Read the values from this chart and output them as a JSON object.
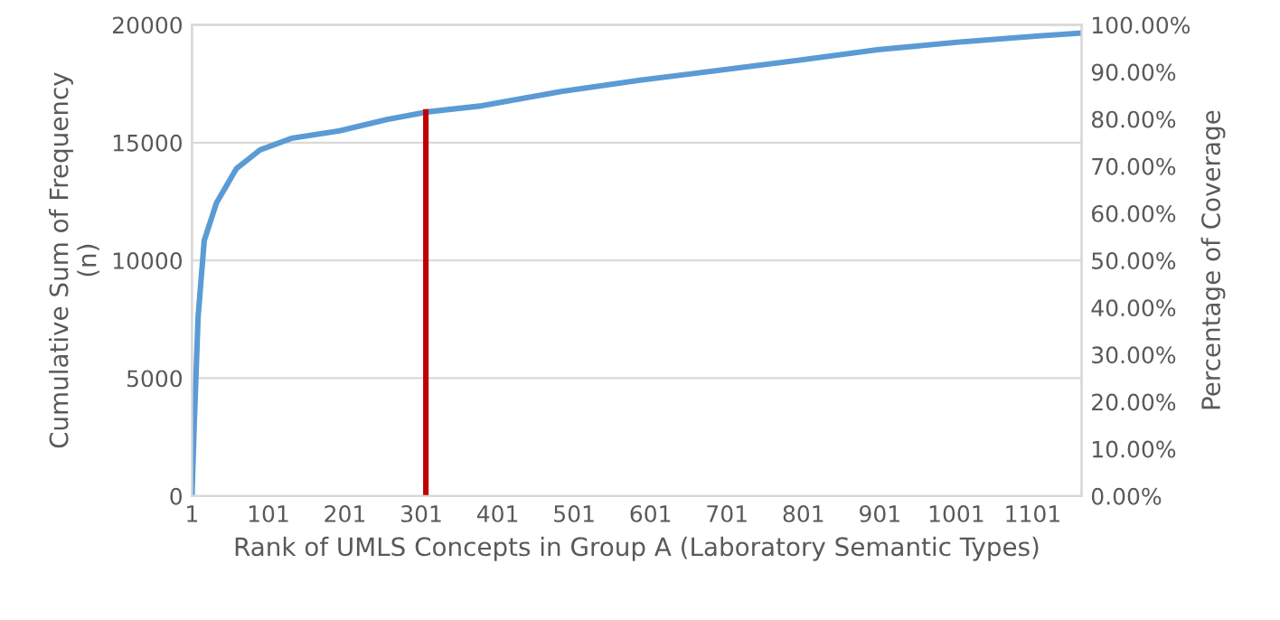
{
  "chart_data": {
    "type": "line",
    "xlabel": "Rank of UMLS Concepts in Group A (Laboratory Semantic Types)",
    "ylabel": "Cumulative Sum of Frequency\n(n)",
    "y2label": "Percentage of Coverage",
    "x": [
      1,
      4,
      9,
      17,
      33,
      59,
      90,
      131,
      194,
      256,
      308,
      380,
      484,
      587,
      691,
      794,
      898,
      1002,
      1105,
      1165
    ],
    "series": [
      {
        "color": "#5b9bd5",
        "values": [
          0,
          3120,
          7620,
          10840,
          12440,
          13890,
          14690,
          15180,
          15500,
          15980,
          16300,
          16560,
          17170,
          17650,
          18070,
          18490,
          18940,
          19260,
          19520,
          19650
        ]
      },
      {
        "color": "#c00000",
        "x": [
          307,
          307
        ],
        "values": [
          0,
          16300
        ]
      }
    ],
    "xlim": [
      1,
      1165
    ],
    "xticks": [
      1,
      101,
      201,
      301,
      401,
      501,
      601,
      701,
      801,
      901,
      1001,
      1101
    ],
    "ylim": [
      0,
      20000
    ],
    "yticks": [
      0,
      5000,
      10000,
      15000,
      20000
    ],
    "y2lim": [
      0,
      100
    ],
    "y2ticks": [
      {
        "value": 0,
        "label": "0.00%"
      },
      {
        "value": 10,
        "label": "10.00%"
      },
      {
        "value": 20,
        "label": "20.00%"
      },
      {
        "value": 30,
        "label": "30.00%"
      },
      {
        "value": 40,
        "label": "40.00%"
      },
      {
        "value": 50,
        "label": "50.00%"
      },
      {
        "value": 60,
        "label": "60.00%"
      },
      {
        "value": 70,
        "label": "70.00%"
      },
      {
        "value": 80,
        "label": "80.00%"
      },
      {
        "value": 90,
        "label": "90.00%"
      },
      {
        "value": 100,
        "label": "100.00%"
      }
    ],
    "grid": "y",
    "legend": false
  }
}
